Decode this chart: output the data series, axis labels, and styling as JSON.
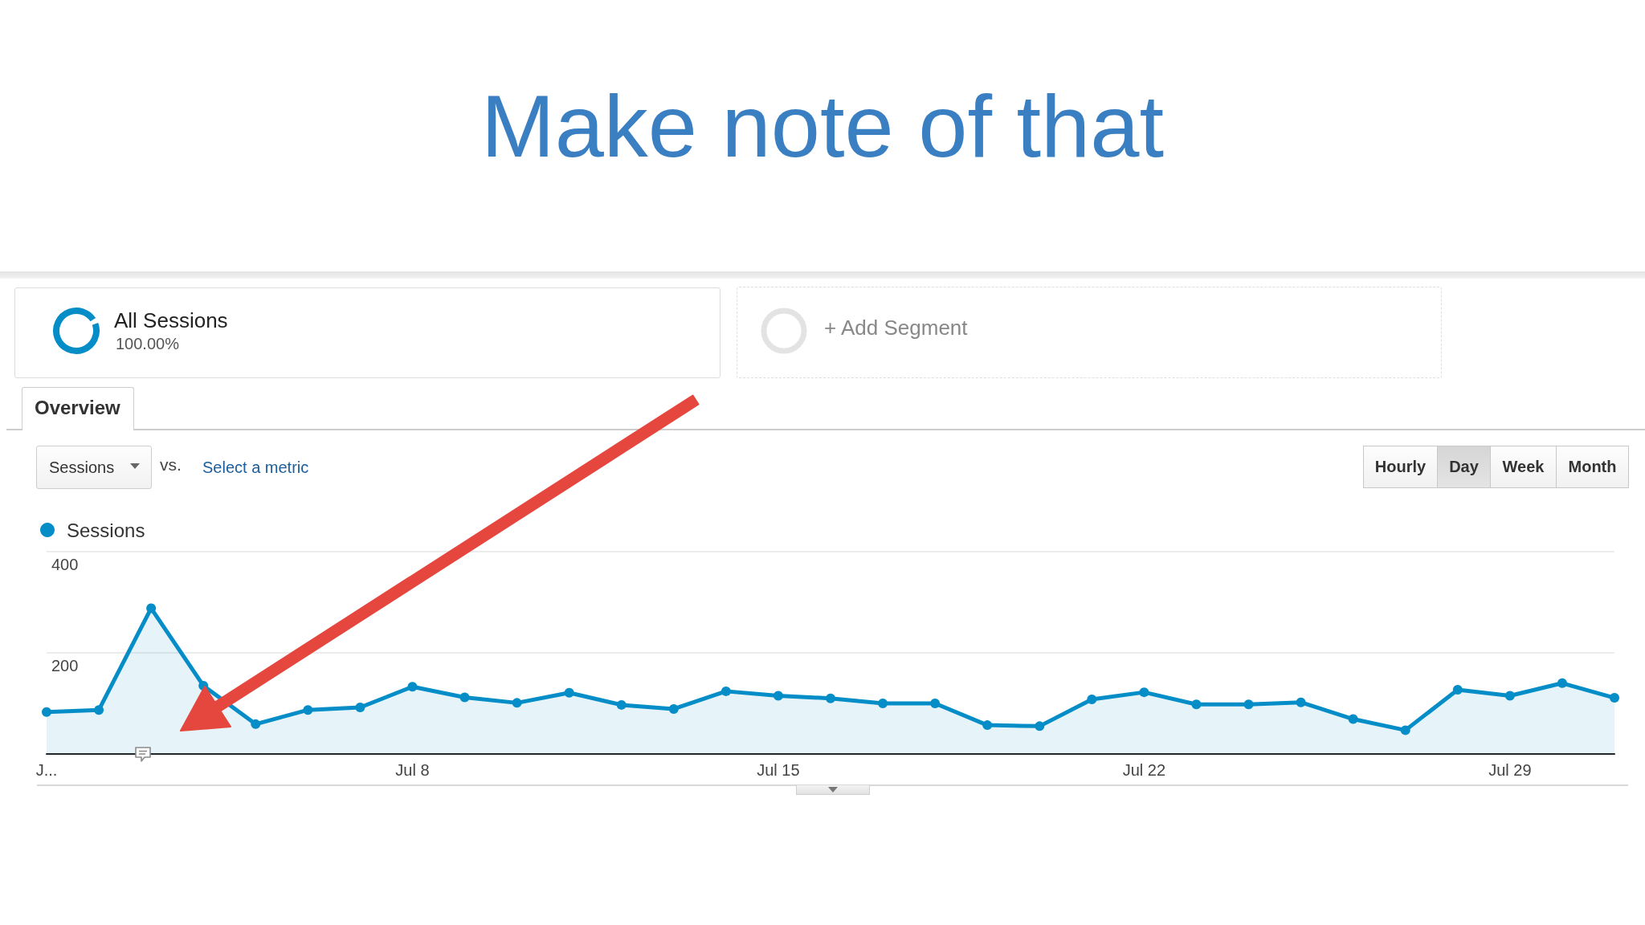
{
  "chart_data": {
    "type": "area",
    "title": "Make note of that",
    "categories": [
      "J...",
      null,
      null,
      null,
      null,
      null,
      null,
      "Jul 8",
      null,
      null,
      null,
      null,
      null,
      null,
      "Jul 15",
      null,
      null,
      null,
      null,
      null,
      null,
      "Jul 22",
      null,
      null,
      null,
      null,
      null,
      null,
      "Jul 29",
      null,
      null
    ],
    "series": [
      {
        "name": "Sessions",
        "color": "#058dc7",
        "values": [
          83,
          87,
          288,
          135,
          59,
          87,
          92,
          133,
          112,
          101,
          121,
          97,
          89,
          124,
          115,
          110,
          100,
          100,
          57,
          55,
          108,
          122,
          98,
          98,
          102,
          69,
          47,
          127,
          115,
          140,
          111
        ]
      }
    ],
    "ylim": [
      0,
      400
    ],
    "yticks": [
      {
        "value": 0,
        "label": null
      },
      200,
      400
    ],
    "grid": "y",
    "legend": "top left",
    "marker": "circle",
    "annotations": [
      "All Sessions",
      "100.00%",
      "+ Add Segment",
      "Overview",
      "Sessions",
      "vs.",
      "Select a metric",
      "Hourly",
      "Day",
      "Week",
      "Month"
    ]
  }
}
